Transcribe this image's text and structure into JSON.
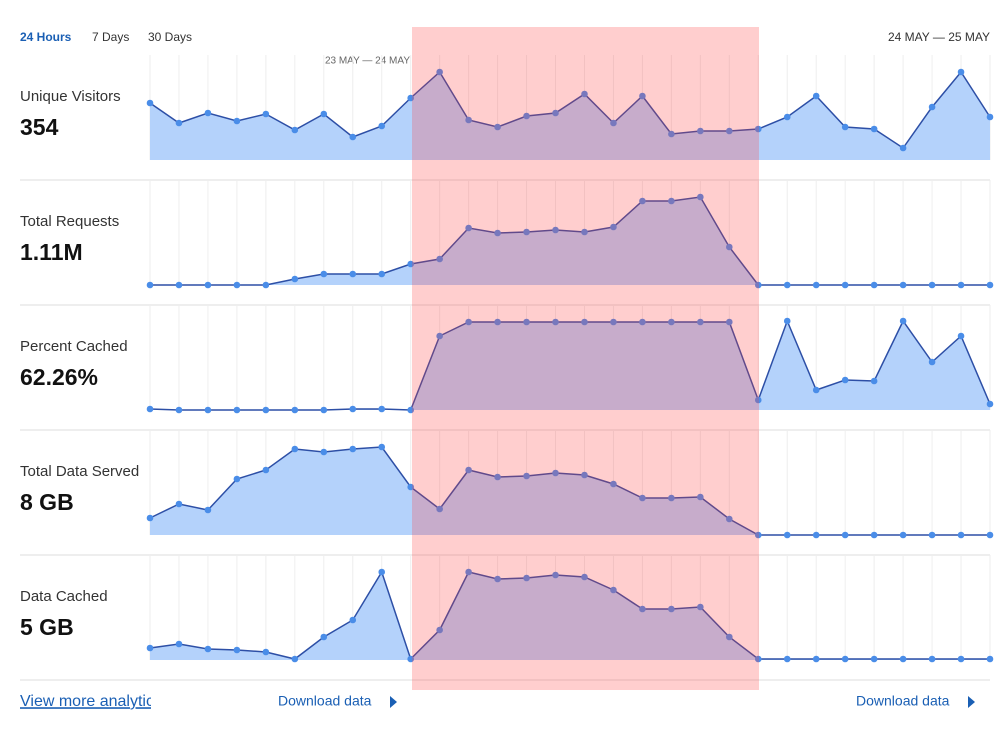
{
  "header": {
    "tabs": [
      "24 Hours",
      "7 Days",
      "30 Days"
    ],
    "date_range": "24 MAY — 25 MAY",
    "highlight_label": "23 MAY — 24 MAY"
  },
  "metrics": [
    {
      "label": "Unique Visitors",
      "value": "354",
      "ylim": [
        0,
        100
      ],
      "values": [
        57,
        37,
        47,
        39,
        46,
        30,
        46,
        23,
        34,
        62,
        88,
        40,
        33,
        44,
        47,
        66,
        37,
        64,
        26,
        29,
        29,
        31,
        43,
        64,
        33,
        31,
        12,
        53,
        88,
        43
      ]
    },
    {
      "label": "Total Requests",
      "value": "1.11M",
      "ylim": [
        0,
        100
      ],
      "values": [
        0,
        0,
        0,
        0,
        0,
        6,
        11,
        11,
        11,
        21,
        26,
        57,
        52,
        53,
        55,
        53,
        58,
        84,
        84,
        88,
        38,
        0,
        0,
        0,
        0,
        0,
        0,
        0,
        0,
        0
      ]
    },
    {
      "label": "Percent Cached",
      "value": "62.26%",
      "ylim": [
        0,
        100
      ],
      "values": [
        1,
        0,
        0,
        0,
        0,
        0,
        0,
        1,
        1,
        0,
        74,
        88,
        88,
        88,
        88,
        88,
        88,
        88,
        88,
        88,
        88,
        10,
        89,
        20,
        30,
        29,
        89,
        48,
        74,
        6
      ]
    },
    {
      "label": "Total Data Served",
      "value": "8 GB",
      "ylim": [
        0,
        100
      ],
      "values": [
        17,
        31,
        25,
        56,
        65,
        86,
        83,
        86,
        88,
        48,
        26,
        65,
        58,
        59,
        62,
        60,
        51,
        37,
        37,
        38,
        16,
        0,
        0,
        0,
        0,
        0,
        0,
        0,
        0,
        0
      ]
    },
    {
      "label": "Data Cached",
      "value": "5 GB",
      "ylim": [
        0,
        100
      ],
      "values": [
        12,
        16,
        11,
        10,
        8,
        1,
        23,
        40,
        88,
        1,
        30,
        88,
        81,
        82,
        85,
        83,
        70,
        51,
        51,
        53,
        23,
        1,
        1,
        1,
        1,
        1,
        1,
        1,
        1,
        1
      ]
    }
  ],
  "footer": {
    "view_more": "View more analytics",
    "downloads": [
      "Download data",
      "Download data"
    ]
  }
}
